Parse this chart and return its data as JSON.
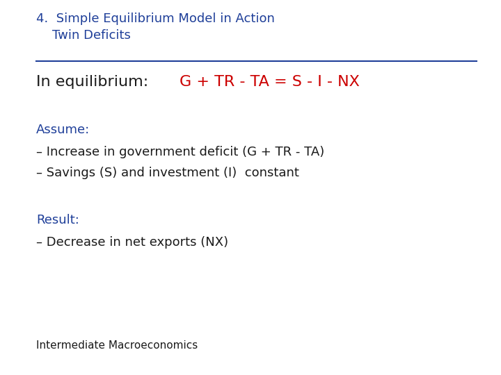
{
  "title_number": "4.",
  "title_line1": "Simple Equilibrium Model in Action",
  "title_line2": "Twin Deficits",
  "title_color": "#1F3F99",
  "title_fontsize": 13,
  "line_color": "#1F3F99",
  "eq_label": "In equilibrium:",
  "eq_label_color": "#1a1a1a",
  "eq_label_fontsize": 16,
  "eq_formula": "G + TR - TA = S - I - NX",
  "eq_formula_color": "#CC0000",
  "eq_fontsize": 16,
  "assume_label": "Assume:",
  "assume_color": "#1F3F99",
  "assume_fontsize": 13,
  "bullet1": "– Increase in government deficit (G + TR - TA)",
  "bullet2": "– Savings (S) and investment (I)  constant",
  "bullet_color": "#1a1a1a",
  "bullet_fontsize": 13,
  "result_label": "Result:",
  "result_color": "#1F3F99",
  "result_fontsize": 13,
  "result_bullet": "– Decrease in net exports (NX)",
  "result_bullet_color": "#1a1a1a",
  "result_bullet_fontsize": 13,
  "footer": "Intermediate Macroeconomics",
  "footer_color": "#1a1a1a",
  "footer_fontsize": 11,
  "bg_color": "#FFFFFF"
}
